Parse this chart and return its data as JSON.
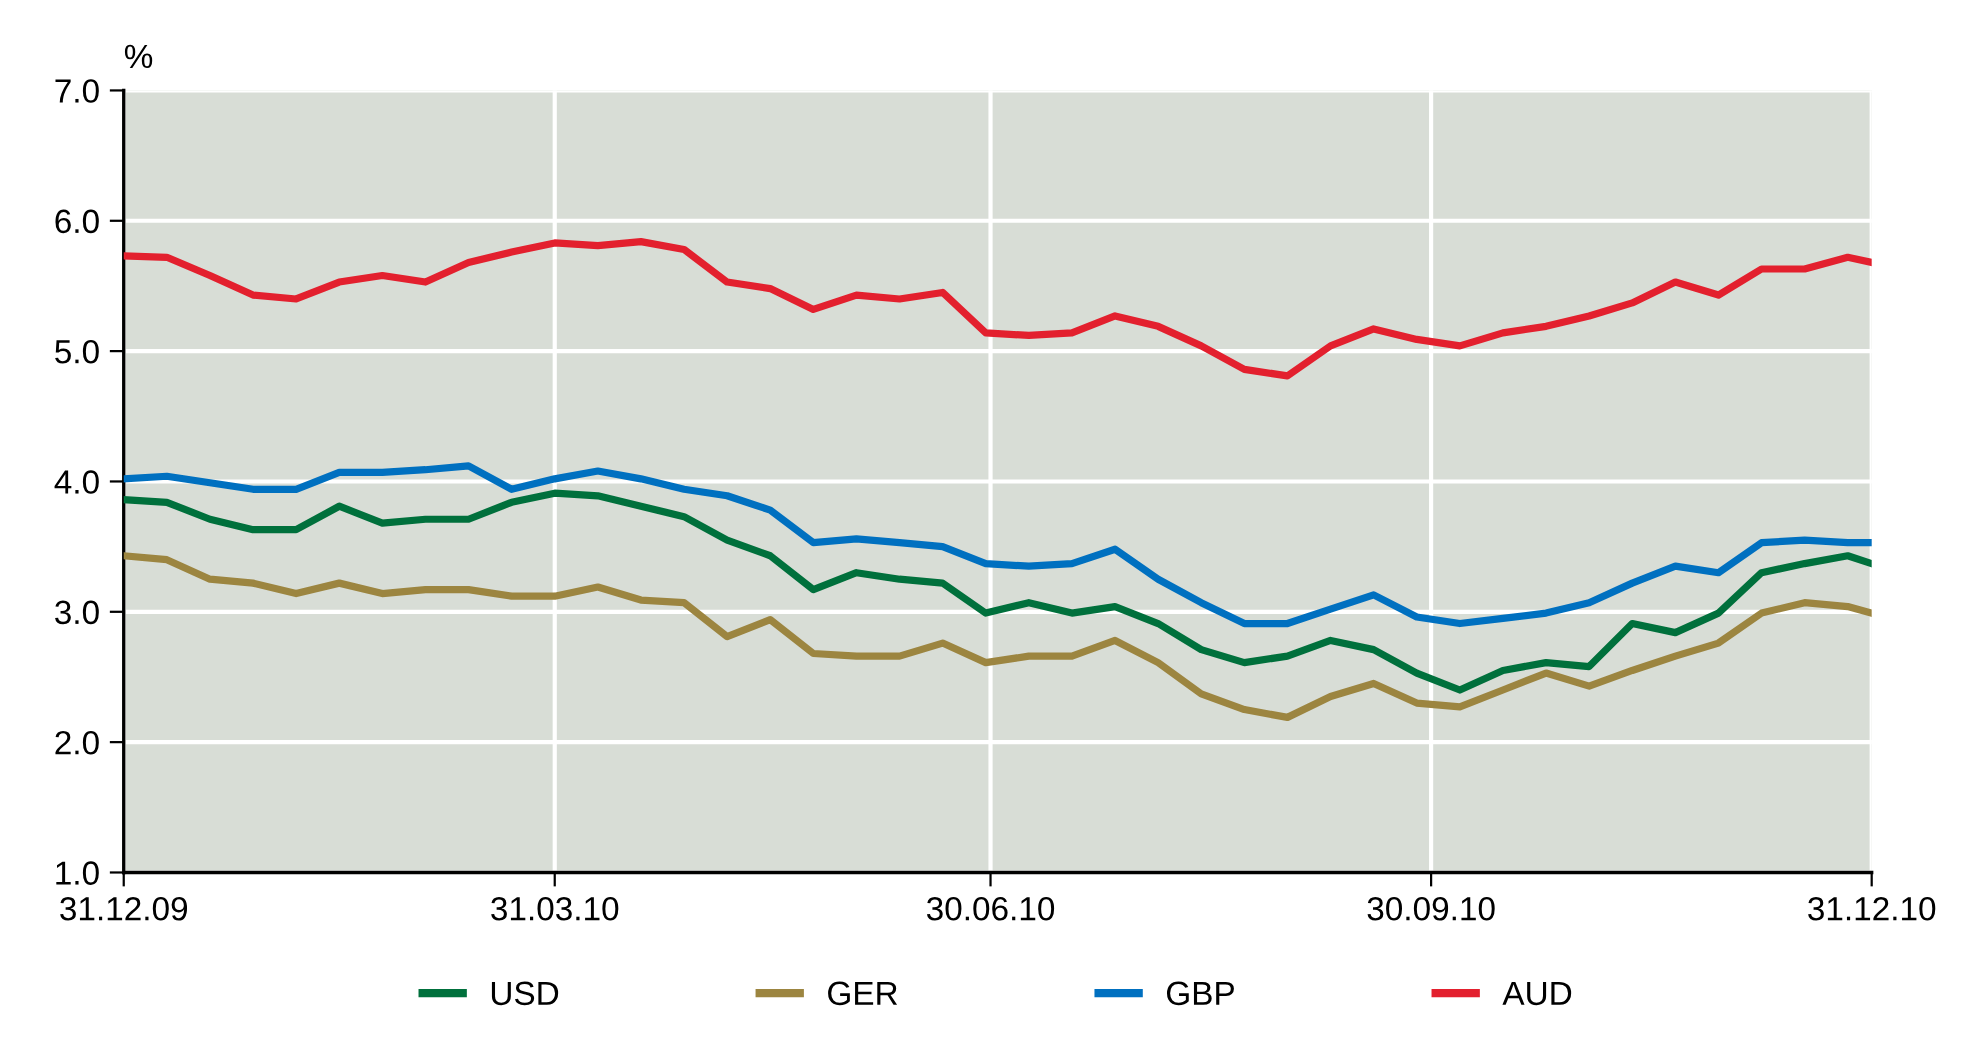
{
  "chart_data": {
    "type": "line",
    "ylabel": "%",
    "x": [
      "2009-12-31",
      "2010-01-09",
      "2010-01-18",
      "2010-01-27",
      "2010-02-05",
      "2010-02-14",
      "2010-02-23",
      "2010-03-04",
      "2010-03-13",
      "2010-03-22",
      "2010-03-31",
      "2010-04-09",
      "2010-04-18",
      "2010-04-27",
      "2010-05-06",
      "2010-05-15",
      "2010-05-24",
      "2010-06-02",
      "2010-06-11",
      "2010-06-20",
      "2010-06-29",
      "2010-07-08",
      "2010-07-17",
      "2010-07-26",
      "2010-08-04",
      "2010-08-13",
      "2010-08-22",
      "2010-08-31",
      "2010-09-09",
      "2010-09-18",
      "2010-09-27",
      "2010-10-06",
      "2010-10-15",
      "2010-10-24",
      "2010-11-02",
      "2010-11-11",
      "2010-11-20",
      "2010-11-29",
      "2010-12-08",
      "2010-12-17",
      "2010-12-26",
      "2010-12-31"
    ],
    "series": [
      {
        "name": "USD",
        "color": "#00703c",
        "values": [
          3.86,
          3.84,
          3.71,
          3.63,
          3.63,
          3.81,
          3.68,
          3.71,
          3.71,
          3.84,
          3.91,
          3.89,
          3.81,
          3.73,
          3.55,
          3.43,
          3.17,
          3.3,
          3.25,
          3.22,
          2.99,
          3.07,
          2.99,
          3.04,
          2.91,
          2.71,
          2.61,
          2.66,
          2.78,
          2.71,
          2.53,
          2.4,
          2.55,
          2.61,
          2.58,
          2.91,
          2.84,
          2.99,
          3.3,
          3.37,
          3.43,
          3.37
        ]
      },
      {
        "name": "GER",
        "color": "#9c8540",
        "values": [
          3.43,
          3.4,
          3.25,
          3.22,
          3.14,
          3.22,
          3.14,
          3.17,
          3.17,
          3.12,
          3.12,
          3.19,
          3.09,
          3.07,
          2.81,
          2.94,
          2.68,
          2.66,
          2.66,
          2.76,
          2.61,
          2.66,
          2.66,
          2.78,
          2.61,
          2.37,
          2.25,
          2.19,
          2.35,
          2.45,
          2.3,
          2.27,
          2.4,
          2.53,
          2.43,
          2.55,
          2.66,
          2.76,
          2.99,
          3.07,
          3.04,
          2.99
        ]
      },
      {
        "name": "GBP",
        "color": "#0070c0",
        "values": [
          4.02,
          4.04,
          3.99,
          3.94,
          3.94,
          4.07,
          4.07,
          4.09,
          4.12,
          3.94,
          4.02,
          4.08,
          4.02,
          3.94,
          3.89,
          3.78,
          3.53,
          3.56,
          3.53,
          3.5,
          3.37,
          3.35,
          3.37,
          3.48,
          3.25,
          3.07,
          2.91,
          2.91,
          3.02,
          3.13,
          2.96,
          2.91,
          2.95,
          2.99,
          3.07,
          3.22,
          3.35,
          3.3,
          3.53,
          3.55,
          3.53,
          3.53
        ]
      },
      {
        "name": "AUD",
        "color": "#e3202e",
        "values": [
          5.73,
          5.72,
          5.58,
          5.43,
          5.4,
          5.53,
          5.58,
          5.53,
          5.68,
          5.76,
          5.83,
          5.81,
          5.84,
          5.78,
          5.53,
          5.48,
          5.32,
          5.43,
          5.4,
          5.45,
          5.14,
          5.12,
          5.14,
          5.27,
          5.19,
          5.04,
          4.86,
          4.81,
          5.04,
          5.17,
          5.09,
          5.04,
          5.14,
          5.19,
          5.27,
          5.37,
          5.53,
          5.43,
          5.63,
          5.63,
          5.72,
          5.68
        ]
      }
    ],
    "xlim": [
      "2009-12-31",
      "2010-12-31"
    ],
    "xticks": [
      {
        "value": "2009-12-31",
        "label": "31.12.09"
      },
      {
        "value": "2010-03-31",
        "label": "31.03.10"
      },
      {
        "value": "2010-06-30",
        "label": "30.06.10"
      },
      {
        "value": "2010-09-30",
        "label": "30.09.10"
      },
      {
        "value": "2010-12-31",
        "label": "31.12.10"
      }
    ],
    "ylim": [
      1,
      7
    ],
    "yticks": [
      {
        "value": 1,
        "label": "1.0"
      },
      {
        "value": 2,
        "label": "2.0"
      },
      {
        "value": 3,
        "label": "3.0"
      },
      {
        "value": 4,
        "label": "4.0"
      },
      {
        "value": 5,
        "label": "5.0"
      },
      {
        "value": 6,
        "label": "6.0"
      },
      {
        "value": 7,
        "label": "7.0"
      }
    ],
    "grid": true,
    "legend": "bottom",
    "marker": "none",
    "line_style": "solid"
  }
}
